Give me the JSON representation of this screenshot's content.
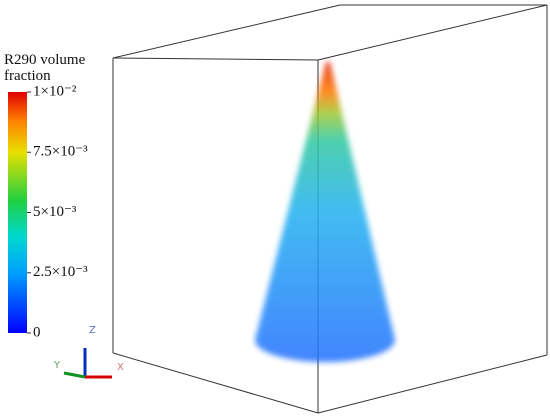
{
  "colorbar": {
    "title": "R290 volume fraction",
    "lim": [
      0,
      0.01
    ],
    "ticks": [
      0,
      {
        "value": 0.0025,
        "label": "2.5×10⁻³"
      },
      {
        "value": 0.005,
        "label": "5×10⁻³"
      },
      {
        "value": 0.0075,
        "label": "7.5×10⁻³"
      },
      {
        "value": 0.01,
        "label": "1×10⁻²"
      }
    ]
  },
  "triad": {
    "z": "Z",
    "x": "X",
    "y": "Y"
  }
}
